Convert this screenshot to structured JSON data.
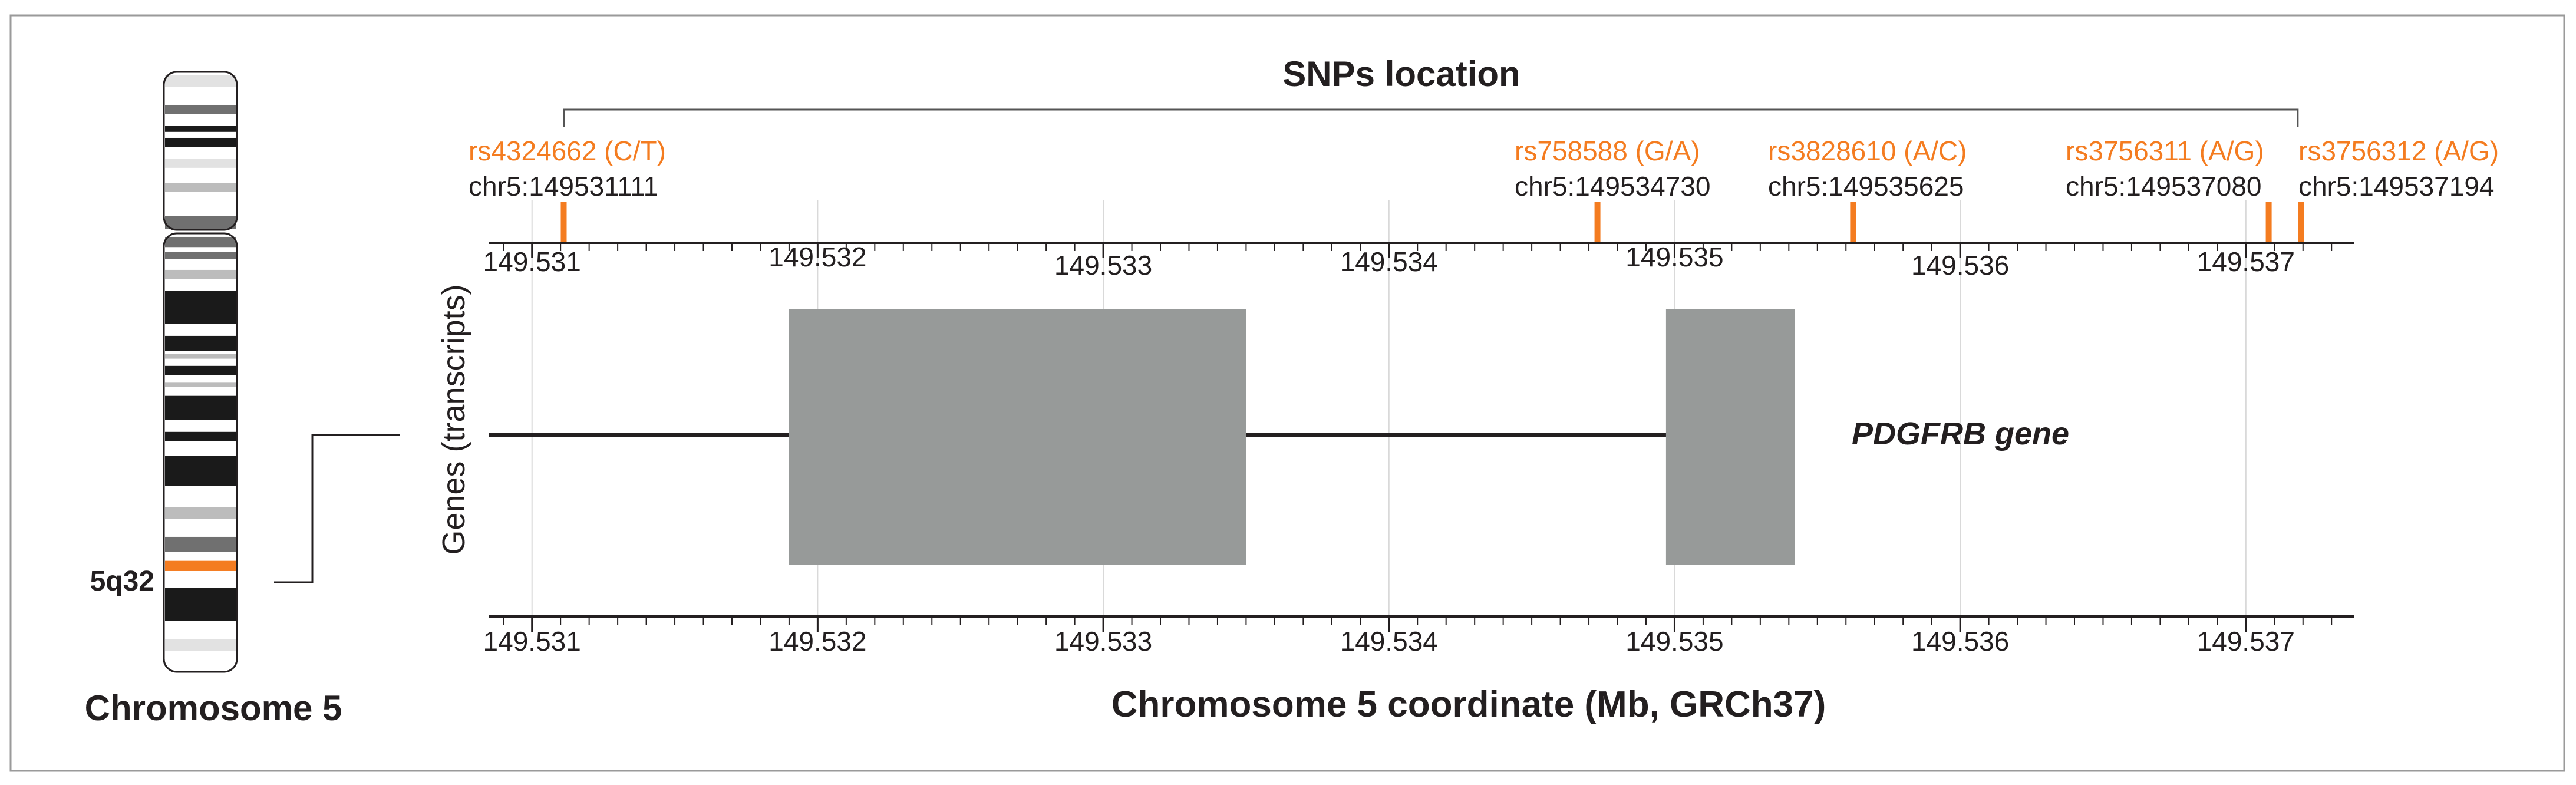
{
  "colors": {
    "snp": "#F47C20",
    "exon": "#979a99",
    "intron": "#231f20",
    "band_dark": "#1a1a1a",
    "band_mid": "#707070",
    "band_light": "#bcbcbc",
    "band_pale": "#e2e2e2",
    "grid": "#d9d9d9",
    "frame": "#9a9a9a"
  },
  "chromosome": {
    "name": "Chromosome 5",
    "band_label": "5q32",
    "bands": [
      {
        "from": 0.005,
        "to": 0.025,
        "shade": "pale"
      },
      {
        "from": 0.055,
        "to": 0.07,
        "shade": "mid"
      },
      {
        "from": 0.09,
        "to": 0.1,
        "shade": "dark"
      },
      {
        "from": 0.11,
        "to": 0.125,
        "shade": "dark"
      },
      {
        "from": 0.145,
        "to": 0.16,
        "shade": "pale"
      },
      {
        "from": 0.185,
        "to": 0.2,
        "shade": "light"
      },
      {
        "from": 0.24,
        "to": 0.262,
        "shade": "mid"
      },
      {
        "from": 0.275,
        "to": 0.292,
        "shade": "mid"
      },
      {
        "from": 0.3,
        "to": 0.312,
        "shade": "mid"
      },
      {
        "from": 0.33,
        "to": 0.345,
        "shade": "light"
      },
      {
        "from": 0.365,
        "to": 0.42,
        "shade": "dark"
      },
      {
        "from": 0.44,
        "to": 0.465,
        "shade": "dark"
      },
      {
        "from": 0.47,
        "to": 0.478,
        "shade": "light"
      },
      {
        "from": 0.49,
        "to": 0.505,
        "shade": "dark"
      },
      {
        "from": 0.518,
        "to": 0.525,
        "shade": "light"
      },
      {
        "from": 0.54,
        "to": 0.58,
        "shade": "dark"
      },
      {
        "from": 0.6,
        "to": 0.615,
        "shade": "dark"
      },
      {
        "from": 0.64,
        "to": 0.69,
        "shade": "dark"
      },
      {
        "from": 0.725,
        "to": 0.745,
        "shade": "light"
      },
      {
        "from": 0.775,
        "to": 0.8,
        "shade": "mid"
      },
      {
        "from": 0.815,
        "to": 0.832,
        "shade": "snp"
      },
      {
        "from": 0.86,
        "to": 0.915,
        "shade": "dark"
      },
      {
        "from": 0.945,
        "to": 0.965,
        "shade": "pale"
      }
    ]
  },
  "snp_panel": {
    "title": "SNPs location",
    "snps": [
      {
        "id": "rs4324662 (C/T)",
        "coord": "chr5:149531111",
        "pos": 149.531111
      },
      {
        "id": "rs758588 (G/A)",
        "coord": "chr5:149534730",
        "pos": 149.53473
      },
      {
        "id": "rs3828610 (A/C)",
        "coord": "chr5:149535625",
        "pos": 149.535625
      },
      {
        "id": "rs3756311 (A/G)",
        "coord": "chr5:149537080",
        "pos": 149.53708
      },
      {
        "id": "rs3756312 (A/G)",
        "coord": "chr5:149537194",
        "pos": 149.537194
      }
    ]
  },
  "axis": {
    "range": [
      149.53085,
      149.53738
    ],
    "ticks": [
      149.531,
      149.532,
      149.533,
      149.534,
      149.535,
      149.536,
      149.537
    ],
    "tick_labels": [
      "149.531",
      "149.532",
      "149.533",
      "149.534",
      "149.535",
      "149.536",
      "149.537"
    ],
    "xlabel": "Chromosome 5 coordinate (Mb, GRCh37)",
    "ylabel": "Genes (transcripts)"
  },
  "gene": {
    "name": "PDGFRB gene",
    "start": 149.53085,
    "end": 149.53541,
    "exons": [
      {
        "start": 149.5319,
        "end": 149.5335
      },
      {
        "start": 149.53497,
        "end": 149.53542
      }
    ]
  }
}
